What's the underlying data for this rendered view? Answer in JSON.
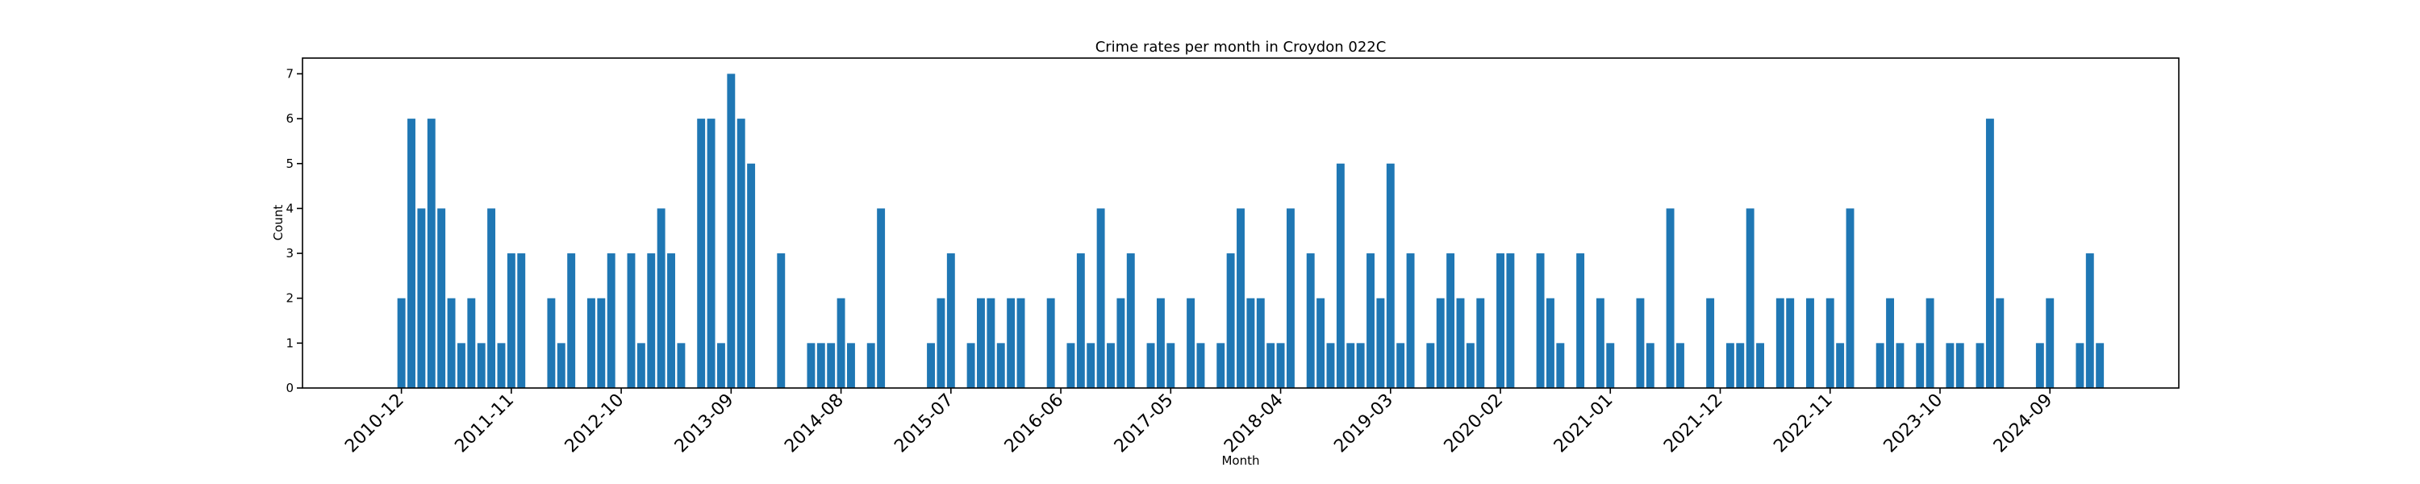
{
  "chart_data": {
    "type": "bar",
    "title": "Crime rates per month in Croydon 022C",
    "xlabel": "Month",
    "ylabel": "Count",
    "ylim": [
      0,
      7.35
    ],
    "yticks": [
      0,
      1,
      2,
      3,
      4,
      5,
      6,
      7
    ],
    "xlim": [
      -9.9,
      177.9
    ],
    "x_start": "2010-12",
    "xtick_labels": [
      "2010-12",
      "2011-11",
      "2012-10",
      "2013-09",
      "2014-08",
      "2015-07",
      "2016-06",
      "2017-05",
      "2018-04",
      "2019-03",
      "2020-02",
      "2021-01",
      "2021-12",
      "2022-11",
      "2023-10",
      "2024-09"
    ],
    "bar_color": "#1f77b4",
    "grid": false,
    "points": [
      {
        "x": "2010-12",
        "y": 2
      },
      {
        "x": "2011-01",
        "y": 6
      },
      {
        "x": "2011-02",
        "y": 4
      },
      {
        "x": "2011-03",
        "y": 6
      },
      {
        "x": "2011-04",
        "y": 4
      },
      {
        "x": "2011-05",
        "y": 2
      },
      {
        "x": "2011-06",
        "y": 1
      },
      {
        "x": "2011-07",
        "y": 2
      },
      {
        "x": "2011-08",
        "y": 1
      },
      {
        "x": "2011-09",
        "y": 4
      },
      {
        "x": "2011-10",
        "y": 1
      },
      {
        "x": "2011-11",
        "y": 3
      },
      {
        "x": "2011-12",
        "y": 3
      },
      {
        "x": "2012-03",
        "y": 2
      },
      {
        "x": "2012-04",
        "y": 1
      },
      {
        "x": "2012-05",
        "y": 3
      },
      {
        "x": "2012-07",
        "y": 2
      },
      {
        "x": "2012-08",
        "y": 2
      },
      {
        "x": "2012-09",
        "y": 3
      },
      {
        "x": "2012-11",
        "y": 3
      },
      {
        "x": "2012-12",
        "y": 1
      },
      {
        "x": "2013-01",
        "y": 3
      },
      {
        "x": "2013-02",
        "y": 4
      },
      {
        "x": "2013-03",
        "y": 3
      },
      {
        "x": "2013-04",
        "y": 1
      },
      {
        "x": "2013-06",
        "y": 6
      },
      {
        "x": "2013-07",
        "y": 6
      },
      {
        "x": "2013-08",
        "y": 1
      },
      {
        "x": "2013-09",
        "y": 7
      },
      {
        "x": "2013-10",
        "y": 6
      },
      {
        "x": "2013-11",
        "y": 5
      },
      {
        "x": "2014-02",
        "y": 3
      },
      {
        "x": "2014-05",
        "y": 1
      },
      {
        "x": "2014-06",
        "y": 1
      },
      {
        "x": "2014-07",
        "y": 1
      },
      {
        "x": "2014-08",
        "y": 2
      },
      {
        "x": "2014-09",
        "y": 1
      },
      {
        "x": "2014-11",
        "y": 1
      },
      {
        "x": "2014-12",
        "y": 4
      },
      {
        "x": "2015-05",
        "y": 1
      },
      {
        "x": "2015-06",
        "y": 2
      },
      {
        "x": "2015-07",
        "y": 3
      },
      {
        "x": "2015-09",
        "y": 1
      },
      {
        "x": "2015-10",
        "y": 2
      },
      {
        "x": "2015-11",
        "y": 2
      },
      {
        "x": "2015-12",
        "y": 1
      },
      {
        "x": "2016-01",
        "y": 2
      },
      {
        "x": "2016-02",
        "y": 2
      },
      {
        "x": "2016-05",
        "y": 2
      },
      {
        "x": "2016-07",
        "y": 1
      },
      {
        "x": "2016-08",
        "y": 3
      },
      {
        "x": "2016-09",
        "y": 1
      },
      {
        "x": "2016-10",
        "y": 4
      },
      {
        "x": "2016-11",
        "y": 1
      },
      {
        "x": "2016-12",
        "y": 2
      },
      {
        "x": "2017-01",
        "y": 3
      },
      {
        "x": "2017-03",
        "y": 1
      },
      {
        "x": "2017-04",
        "y": 2
      },
      {
        "x": "2017-05",
        "y": 1
      },
      {
        "x": "2017-07",
        "y": 2
      },
      {
        "x": "2017-08",
        "y": 1
      },
      {
        "x": "2017-10",
        "y": 1
      },
      {
        "x": "2017-11",
        "y": 3
      },
      {
        "x": "2017-12",
        "y": 4
      },
      {
        "x": "2018-01",
        "y": 2
      },
      {
        "x": "2018-02",
        "y": 2
      },
      {
        "x": "2018-03",
        "y": 1
      },
      {
        "x": "2018-04",
        "y": 1
      },
      {
        "x": "2018-05",
        "y": 4
      },
      {
        "x": "2018-07",
        "y": 3
      },
      {
        "x": "2018-08",
        "y": 2
      },
      {
        "x": "2018-09",
        "y": 1
      },
      {
        "x": "2018-10",
        "y": 5
      },
      {
        "x": "2018-11",
        "y": 1
      },
      {
        "x": "2018-12",
        "y": 1
      },
      {
        "x": "2019-01",
        "y": 3
      },
      {
        "x": "2019-02",
        "y": 2
      },
      {
        "x": "2019-03",
        "y": 5
      },
      {
        "x": "2019-04",
        "y": 1
      },
      {
        "x": "2019-05",
        "y": 3
      },
      {
        "x": "2019-07",
        "y": 1
      },
      {
        "x": "2019-08",
        "y": 2
      },
      {
        "x": "2019-09",
        "y": 3
      },
      {
        "x": "2019-10",
        "y": 2
      },
      {
        "x": "2019-11",
        "y": 1
      },
      {
        "x": "2019-12",
        "y": 2
      },
      {
        "x": "2020-02",
        "y": 3
      },
      {
        "x": "2020-03",
        "y": 3
      },
      {
        "x": "2020-06",
        "y": 3
      },
      {
        "x": "2020-07",
        "y": 2
      },
      {
        "x": "2020-08",
        "y": 1
      },
      {
        "x": "2020-10",
        "y": 3
      },
      {
        "x": "2020-12",
        "y": 2
      },
      {
        "x": "2021-01",
        "y": 1
      },
      {
        "x": "2021-04",
        "y": 2
      },
      {
        "x": "2021-05",
        "y": 1
      },
      {
        "x": "2021-07",
        "y": 4
      },
      {
        "x": "2021-08",
        "y": 1
      },
      {
        "x": "2021-11",
        "y": 2
      },
      {
        "x": "2022-01",
        "y": 1
      },
      {
        "x": "2022-02",
        "y": 1
      },
      {
        "x": "2022-03",
        "y": 4
      },
      {
        "x": "2022-04",
        "y": 1
      },
      {
        "x": "2022-06",
        "y": 2
      },
      {
        "x": "2022-07",
        "y": 2
      },
      {
        "x": "2022-09",
        "y": 2
      },
      {
        "x": "2022-11",
        "y": 2
      },
      {
        "x": "2022-12",
        "y": 1
      },
      {
        "x": "2023-01",
        "y": 4
      },
      {
        "x": "2023-04",
        "y": 1
      },
      {
        "x": "2023-05",
        "y": 2
      },
      {
        "x": "2023-06",
        "y": 1
      },
      {
        "x": "2023-08",
        "y": 1
      },
      {
        "x": "2023-09",
        "y": 2
      },
      {
        "x": "2023-11",
        "y": 1
      },
      {
        "x": "2023-12",
        "y": 1
      },
      {
        "x": "2024-02",
        "y": 1
      },
      {
        "x": "2024-03",
        "y": 6
      },
      {
        "x": "2024-04",
        "y": 2
      },
      {
        "x": "2024-08",
        "y": 1
      },
      {
        "x": "2024-09",
        "y": 2
      },
      {
        "x": "2024-12",
        "y": 1
      },
      {
        "x": "2025-01",
        "y": 3
      },
      {
        "x": "2025-02",
        "y": 1
      }
    ]
  }
}
